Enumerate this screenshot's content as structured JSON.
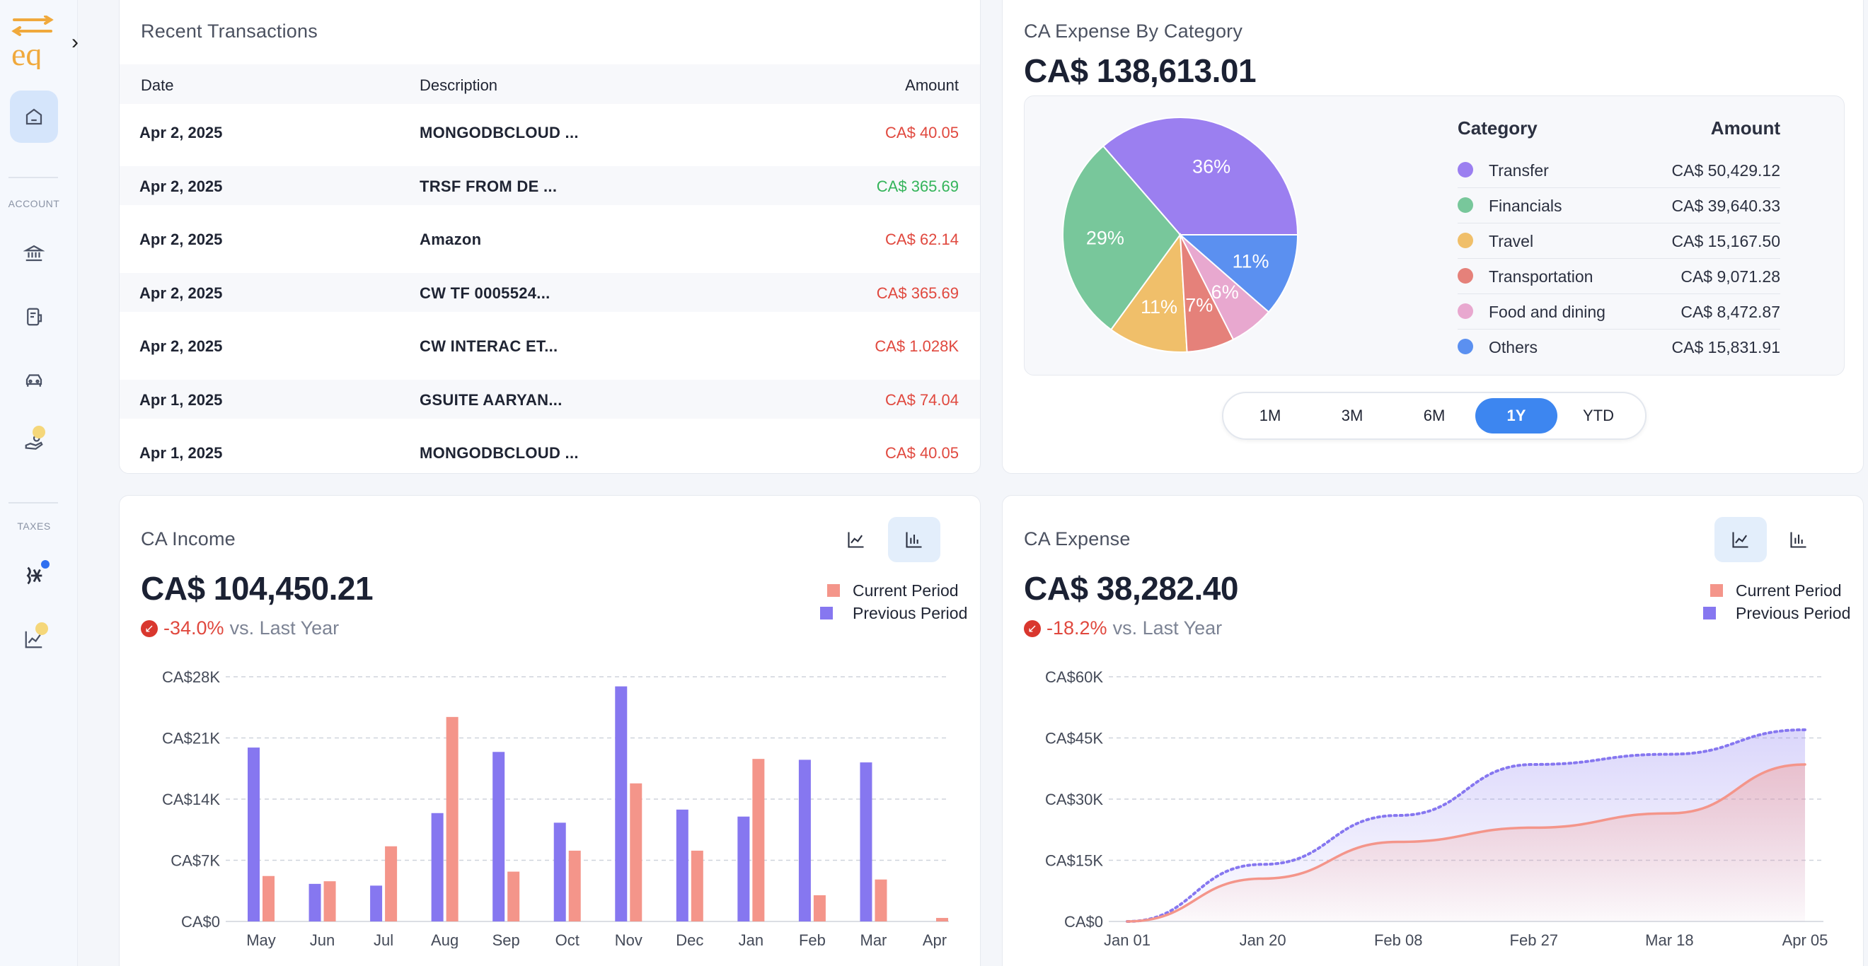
{
  "sidebar": {
    "logo_text": "eq",
    "section_account": "ACCOUNT",
    "section_taxes": "TAXES"
  },
  "transactions": {
    "title": "Recent Transactions",
    "columns": {
      "date": "Date",
      "description": "Description",
      "amount": "Amount"
    },
    "rows": [
      {
        "date": "Apr 2, 2025",
        "description": "MONGODBCLOUD ...",
        "amount": "CA$ 40.05",
        "type": "debit"
      },
      {
        "date": "Apr 2, 2025",
        "description": "TRSF FROM DE ...",
        "amount": "CA$ 365.69",
        "type": "credit"
      },
      {
        "date": "Apr 2, 2025",
        "description": "Amazon",
        "amount": "CA$ 62.14",
        "type": "debit"
      },
      {
        "date": "Apr 2, 2025",
        "description": "CW TF 0005524...",
        "amount": "CA$ 365.69",
        "type": "debit"
      },
      {
        "date": "Apr 2, 2025",
        "description": "CW INTERAC ET...",
        "amount": "CA$ 1.028K",
        "type": "debit"
      },
      {
        "date": "Apr 1, 2025",
        "description": "GSUITE AARYAN...",
        "amount": "CA$ 74.04",
        "type": "debit"
      },
      {
        "date": "Apr 1, 2025",
        "description": "MONGODBCLOUD ...",
        "amount": "CA$ 40.05",
        "type": "debit"
      }
    ]
  },
  "expense_by_category": {
    "title": "CA Expense By Category",
    "total": "CA$ 138,613.01",
    "legend_header": {
      "category": "Category",
      "amount": "Amount"
    },
    "categories": [
      {
        "name": "Transfer",
        "amount": "CA$ 50,429.12",
        "color": "#9b7ff0"
      },
      {
        "name": "Financials",
        "amount": "CA$ 39,640.33",
        "color": "#78c79b"
      },
      {
        "name": "Travel",
        "amount": "CA$ 15,167.50",
        "color": "#f0bf6a"
      },
      {
        "name": "Transportation",
        "amount": "CA$ 9,071.28",
        "color": "#e5817a"
      },
      {
        "name": "Food and dining",
        "amount": "CA$ 8,472.87",
        "color": "#e8a8cf"
      },
      {
        "name": "Others",
        "amount": "CA$ 15,831.91",
        "color": "#5b90f0"
      }
    ],
    "ranges": [
      "1M",
      "3M",
      "6M",
      "1Y",
      "YTD"
    ],
    "active_range": "1Y"
  },
  "income": {
    "title": "CA Income",
    "total": "CA$ 104,450.21",
    "delta": "-34.0%",
    "delta_suffix": "vs. Last Year",
    "legend": {
      "current": "Current Period",
      "previous": "Previous Period"
    }
  },
  "expense": {
    "title": "CA Expense",
    "total": "CA$ 38,282.40",
    "delta": "-18.2%",
    "delta_suffix": "vs. Last Year",
    "legend": {
      "current": "Current Period",
      "previous": "Previous Period"
    }
  },
  "colors": {
    "current": "#f4958a",
    "previous": "#8677f0",
    "negative": "#e0483e",
    "positive": "#34b45a",
    "accent": "#3d86f0"
  },
  "chart_data": [
    {
      "type": "pie",
      "title": "CA Expense By Category",
      "labels": [
        "Transfer",
        "Financials",
        "Travel",
        "Transportation",
        "Food and dining",
        "Others"
      ],
      "values": [
        50429.12,
        39640.33,
        15167.5,
        9071.28,
        8472.87,
        15831.91
      ],
      "slice_labels": [
        "36%",
        "29%",
        "11%",
        "7%",
        "6%",
        "11%"
      ]
    },
    {
      "type": "bar",
      "title": "CA Income",
      "categories": [
        "May",
        "Jun",
        "Jul",
        "Aug",
        "Sep",
        "Oct",
        "Nov",
        "Dec",
        "Jan",
        "Feb",
        "Mar",
        "Apr"
      ],
      "y_ticks": [
        "CA$0",
        "CA$7K",
        "CA$14K",
        "CA$21K",
        "CA$28K"
      ],
      "ylim": [
        0,
        28000
      ],
      "series": [
        {
          "name": "Previous Period",
          "values": [
            19900,
            4300,
            4100,
            12400,
            19400,
            11300,
            26900,
            12800,
            12000,
            18500,
            18200,
            0
          ]
        },
        {
          "name": "Current Period",
          "values": [
            5200,
            4600,
            8600,
            23400,
            5700,
            8100,
            15800,
            8100,
            18600,
            3000,
            4800,
            400
          ]
        }
      ],
      "grid": true,
      "legend": "top-right"
    },
    {
      "type": "area",
      "title": "CA Expense",
      "x_ticks": [
        "Jan 01",
        "Jan 20",
        "Feb 08",
        "Feb 27",
        "Mar 18",
        "Apr 05"
      ],
      "y_ticks": [
        "CA$0",
        "CA$15K",
        "CA$30K",
        "CA$45K",
        "CA$60K"
      ],
      "ylim": [
        0,
        60000
      ],
      "series": [
        {
          "name": "Previous Period",
          "style": "dotted",
          "points": [
            [
              "Jan 01",
              0
            ],
            [
              "Jan 20",
              14000
            ],
            [
              "Feb 08",
              26000
            ],
            [
              "Feb 27",
              38500
            ],
            [
              "Mar 18",
              41000
            ],
            [
              "Apr 05",
              47000
            ]
          ]
        },
        {
          "name": "Current Period",
          "style": "solid",
          "points": [
            [
              "Jan 01",
              0
            ],
            [
              "Jan 20",
              10500
            ],
            [
              "Feb 08",
              19500
            ],
            [
              "Feb 27",
              23000
            ],
            [
              "Mar 18",
              26500
            ],
            [
              "Apr 05",
              38500
            ]
          ]
        }
      ],
      "grid": true,
      "legend": "top-right"
    }
  ]
}
